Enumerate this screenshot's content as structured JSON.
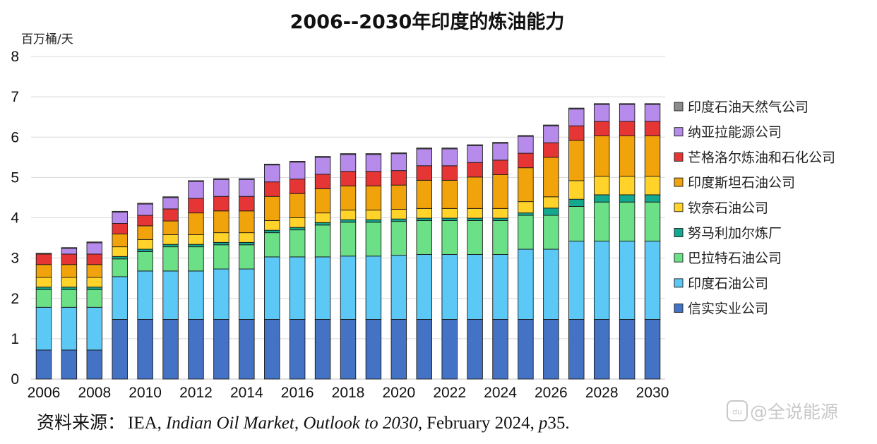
{
  "chart_data": {
    "type": "bar",
    "stacked": true,
    "title": "2006--2030年印度的炼油能力",
    "ylabel": "百万桶/天",
    "xlabel": "",
    "ylim": [
      0,
      8
    ],
    "yticks": [
      "0",
      "1",
      "2",
      "3",
      "4",
      "5",
      "6",
      "7",
      "8"
    ],
    "x_tick_labels": [
      "2006",
      "2008",
      "2010",
      "2012",
      "2014",
      "2016",
      "2018",
      "2020",
      "2022",
      "2024",
      "2026",
      "2028",
      "2030"
    ],
    "grid": "horizontal",
    "legend_position": "right",
    "categories": [
      2006,
      2007,
      2008,
      2009,
      2010,
      2011,
      2012,
      2013,
      2014,
      2015,
      2016,
      2017,
      2018,
      2019,
      2020,
      2021,
      2022,
      2023,
      2024,
      2025,
      2026,
      2027,
      2028,
      2029,
      2030
    ],
    "series": [
      {
        "name": "信实实业公司",
        "color": "#4472C4",
        "values": [
          0.72,
          0.72,
          0.72,
          1.48,
          1.48,
          1.48,
          1.48,
          1.48,
          1.48,
          1.48,
          1.48,
          1.48,
          1.48,
          1.48,
          1.48,
          1.48,
          1.48,
          1.48,
          1.48,
          1.48,
          1.48,
          1.48,
          1.48,
          1.48,
          1.48
        ]
      },
      {
        "name": "印度石油公司",
        "color": "#5BC8F5",
        "values": [
          1.06,
          1.06,
          1.06,
          1.06,
          1.2,
          1.2,
          1.2,
          1.25,
          1.25,
          1.55,
          1.55,
          1.55,
          1.57,
          1.57,
          1.59,
          1.61,
          1.61,
          1.61,
          1.61,
          1.74,
          1.74,
          1.94,
          1.94,
          1.94,
          1.94
        ]
      },
      {
        "name": "巴拉特石油公司",
        "color": "#6BE086",
        "values": [
          0.44,
          0.44,
          0.44,
          0.44,
          0.48,
          0.6,
          0.6,
          0.6,
          0.6,
          0.6,
          0.67,
          0.79,
          0.84,
          0.84,
          0.84,
          0.84,
          0.84,
          0.84,
          0.84,
          0.84,
          0.84,
          0.86,
          0.97,
          0.97,
          0.97
        ]
      },
      {
        "name": "努马利加尔炼厂",
        "color": "#14A88E",
        "values": [
          0.06,
          0.06,
          0.06,
          0.06,
          0.06,
          0.06,
          0.06,
          0.06,
          0.06,
          0.06,
          0.06,
          0.06,
          0.06,
          0.06,
          0.06,
          0.06,
          0.06,
          0.06,
          0.06,
          0.06,
          0.18,
          0.18,
          0.18,
          0.18,
          0.18
        ]
      },
      {
        "name": "钦奈石油公司",
        "color": "#FFD32A",
        "values": [
          0.24,
          0.24,
          0.24,
          0.24,
          0.24,
          0.24,
          0.24,
          0.24,
          0.24,
          0.24,
          0.24,
          0.24,
          0.24,
          0.24,
          0.24,
          0.24,
          0.24,
          0.24,
          0.24,
          0.28,
          0.28,
          0.46,
          0.46,
          0.46,
          0.46
        ]
      },
      {
        "name": "印度斯坦石油公司",
        "color": "#F0A30A",
        "values": [
          0.32,
          0.32,
          0.32,
          0.32,
          0.34,
          0.34,
          0.54,
          0.54,
          0.54,
          0.6,
          0.6,
          0.6,
          0.6,
          0.6,
          0.6,
          0.7,
          0.7,
          0.78,
          0.84,
          0.84,
          0.98,
          1.0,
          1.0,
          1.0,
          1.0
        ]
      },
      {
        "name": "芒格洛尔炼油和石化公司",
        "color": "#E63535",
        "values": [
          0.26,
          0.26,
          0.26,
          0.26,
          0.26,
          0.3,
          0.36,
          0.36,
          0.36,
          0.36,
          0.36,
          0.36,
          0.36,
          0.36,
          0.36,
          0.36,
          0.36,
          0.36,
          0.36,
          0.36,
          0.36,
          0.36,
          0.36,
          0.36,
          0.36
        ]
      },
      {
        "name": "纳亚拉能源公司",
        "color": "#B68BEB",
        "values": [
          0.0,
          0.14,
          0.28,
          0.28,
          0.28,
          0.28,
          0.42,
          0.42,
          0.42,
          0.42,
          0.42,
          0.42,
          0.42,
          0.42,
          0.42,
          0.42,
          0.42,
          0.42,
          0.42,
          0.42,
          0.42,
          0.42,
          0.42,
          0.42,
          0.42
        ]
      },
      {
        "name": "印度石油天然气公司",
        "color": "#8C8C8C",
        "values": [
          0.02,
          0.02,
          0.02,
          0.02,
          0.02,
          0.02,
          0.02,
          0.02,
          0.02,
          0.02,
          0.02,
          0.02,
          0.02,
          0.02,
          0.02,
          0.02,
          0.02,
          0.02,
          0.02,
          0.02,
          0.02,
          0.02,
          0.02,
          0.02,
          0.02
        ]
      }
    ]
  },
  "source": {
    "prefix": "资料来源：",
    "org": "IEA,",
    "report": "Indian Oil Market, Outlook to 2030,",
    "date": "February 2024,",
    "page_italic": "p",
    "page_num": "35."
  },
  "watermark": {
    "text": "@全说能源"
  }
}
